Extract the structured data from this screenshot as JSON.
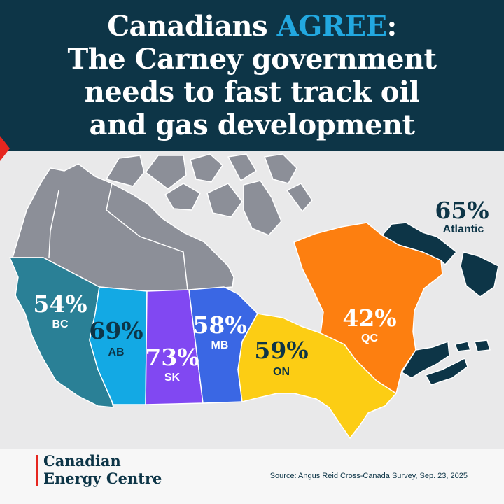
{
  "header": {
    "title_line1_prefix": "Canadians ",
    "title_line1_accent": "AGREE",
    "title_line1_suffix": ":",
    "title_line2": "The Carney government",
    "title_line3": "needs to fast track oil",
    "title_line4": "and gas development"
  },
  "regions": {
    "atlantic": {
      "name": "Atlantic",
      "value": "65%",
      "color": "#0d3547"
    },
    "bc": {
      "name": "BC",
      "value": "54%",
      "color": "#2a8096"
    },
    "ab": {
      "name": "AB",
      "value": "69%",
      "color": "#13a9e4"
    },
    "sk": {
      "name": "SK",
      "value": "73%",
      "color": "#8148f2"
    },
    "mb": {
      "name": "MB",
      "value": "58%",
      "color": "#3a67e4"
    },
    "on": {
      "name": "ON",
      "value": "59%",
      "color": "#fccd14"
    },
    "qc": {
      "name": "QC",
      "value": "42%",
      "color": "#fd7f10"
    },
    "north": {
      "color": "#8c8f98"
    }
  },
  "footer": {
    "logo_line1": "Canadian",
    "logo_line2": "Energy Centre",
    "source": "Source: Angus Reid Cross-Canada Survey, Sep. 23, 2025"
  }
}
